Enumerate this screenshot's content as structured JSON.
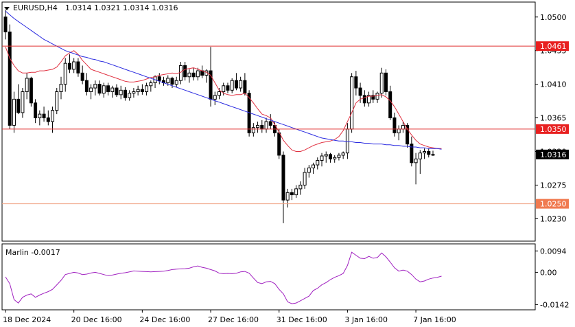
{
  "header": {
    "symbol_text": "EURUSD,H4",
    "ohlc_text": "1.0314 1.0321 1.0314 1.0316"
  },
  "colors": {
    "candle": "#000000",
    "level_line": "#e03030",
    "price_tag": "#e82020",
    "current_tag": "#000000",
    "fast_ma": "#e03040",
    "slow_ma": "#2a2ae0",
    "oscillator": "#a020c0",
    "axis": "#000000",
    "grid": "#e6e6e6"
  },
  "chart_data": [
    {
      "type": "candlestick",
      "title": "EURUSD,H4",
      "ylim": [
        1.02,
        1.052
      ],
      "y_ticks": [
        {
          "value": 1.05,
          "label": "1.0500"
        },
        {
          "value": 1.0455,
          "label": "1.0455"
        },
        {
          "value": 1.041,
          "label": "1.0410"
        },
        {
          "value": 1.0365,
          "label": "1.0365"
        },
        {
          "value": 1.032,
          "label": "1.0320"
        },
        {
          "value": 1.0275,
          "label": "1.0275"
        },
        {
          "value": 1.023,
          "label": "1.0230"
        }
      ],
      "x_ticks": [
        {
          "bar": 0,
          "label": "18 Dec 2024"
        },
        {
          "bar": 16,
          "label": "20 Dec 16:00"
        },
        {
          "bar": 32,
          "label": "24 Dec 16:00"
        },
        {
          "bar": 48,
          "label": "27 Dec 16:00"
        },
        {
          "bar": 64,
          "label": "31 Dec 16:00"
        },
        {
          "bar": 80,
          "label": "3 Jan 16:00"
        },
        {
          "bar": 96,
          "label": "7 Jan 16:00"
        }
      ],
      "levels": [
        {
          "value": 1.0461,
          "label": "1.0461"
        },
        {
          "value": 1.035,
          "label": "1.0350"
        },
        {
          "value": 1.025,
          "label": "1.0250"
        }
      ],
      "current_price": {
        "value": 1.0316,
        "label": "1.0316"
      },
      "candles": [
        [
          1.05,
          1.051,
          1.047,
          1.048
        ],
        [
          1.048,
          1.049,
          1.035,
          1.0355
        ],
        [
          1.0355,
          1.04,
          1.0345,
          1.039
        ],
        [
          1.039,
          1.041,
          1.037,
          1.0372
        ],
        [
          1.0372,
          1.0405,
          1.0365,
          1.04
        ],
        [
          1.04,
          1.0425,
          1.039,
          1.0418
        ],
        [
          1.0418,
          1.042,
          1.038,
          1.0385
        ],
        [
          1.0385,
          1.039,
          1.0358,
          1.0365
        ],
        [
          1.0365,
          1.0375,
          1.0355,
          1.037
        ],
        [
          1.037,
          1.038,
          1.036,
          1.0365
        ],
        [
          1.0365,
          1.0375,
          1.0355,
          1.036
        ],
        [
          1.036,
          1.038,
          1.0345,
          1.0375
        ],
        [
          1.0375,
          1.0405,
          1.037,
          1.04
        ],
        [
          1.04,
          1.042,
          1.039,
          1.041
        ],
        [
          1.041,
          1.0445,
          1.04,
          1.0438
        ],
        [
          1.0438,
          1.045,
          1.0425,
          1.043
        ],
        [
          1.043,
          1.0445,
          1.0425,
          1.044
        ],
        [
          1.044,
          1.0445,
          1.042,
          1.0425
        ],
        [
          1.0425,
          1.0435,
          1.041,
          1.0415
        ],
        [
          1.0415,
          1.0425,
          1.0395,
          1.04
        ],
        [
          1.04,
          1.041,
          1.039,
          1.0405
        ],
        [
          1.0405,
          1.0415,
          1.0395,
          1.041
        ],
        [
          1.041,
          1.0415,
          1.0395,
          1.0398
        ],
        [
          1.0398,
          1.0412,
          1.0392,
          1.0408
        ],
        [
          1.0408,
          1.0412,
          1.0395,
          1.04
        ],
        [
          1.04,
          1.0408,
          1.0392,
          1.0405
        ],
        [
          1.0405,
          1.041,
          1.0393,
          1.0396
        ],
        [
          1.0396,
          1.0408,
          1.039,
          1.0402
        ],
        [
          1.0402,
          1.0406,
          1.0388,
          1.0392
        ],
        [
          1.0392,
          1.0402,
          1.0388,
          1.0398
        ],
        [
          1.0398,
          1.0405,
          1.0392,
          1.04
        ],
        [
          1.04,
          1.0408,
          1.0395,
          1.0403
        ],
        [
          1.0403,
          1.041,
          1.0396,
          1.04
        ],
        [
          1.04,
          1.0412,
          1.0395,
          1.0408
        ],
        [
          1.0408,
          1.0415,
          1.04,
          1.0412
        ],
        [
          1.0412,
          1.0422,
          1.0405,
          1.042
        ],
        [
          1.042,
          1.0425,
          1.041,
          1.0415
        ],
        [
          1.0415,
          1.042,
          1.0408,
          1.0412
        ],
        [
          1.0412,
          1.0422,
          1.0408,
          1.0418
        ],
        [
          1.0418,
          1.042,
          1.0405,
          1.041
        ],
        [
          1.041,
          1.042,
          1.0406,
          1.0415
        ],
        [
          1.0415,
          1.044,
          1.041,
          1.0435
        ],
        [
          1.0435,
          1.044,
          1.0415,
          1.042
        ],
        [
          1.042,
          1.043,
          1.0412,
          1.0425
        ],
        [
          1.0425,
          1.0432,
          1.0415,
          1.042
        ],
        [
          1.042,
          1.0432,
          1.0415,
          1.0428
        ],
        [
          1.0428,
          1.0435,
          1.0418,
          1.0422
        ],
        [
          1.0422,
          1.043,
          1.0412,
          1.0428
        ],
        [
          1.0428,
          1.046,
          1.038,
          1.039
        ],
        [
          1.039,
          1.04,
          1.0382,
          1.0395
        ],
        [
          1.0395,
          1.0405,
          1.039,
          1.04
        ],
        [
          1.04,
          1.0412,
          1.0395,
          1.0408
        ],
        [
          1.0408,
          1.0412,
          1.0398,
          1.0402
        ],
        [
          1.0402,
          1.0418,
          1.0398,
          1.0415
        ],
        [
          1.0415,
          1.0425,
          1.0402,
          1.0405
        ],
        [
          1.0405,
          1.042,
          1.04,
          1.0415
        ],
        [
          1.0415,
          1.0425,
          1.0395,
          1.0398
        ],
        [
          1.0398,
          1.0402,
          1.034,
          1.0345
        ],
        [
          1.0345,
          1.0358,
          1.034,
          1.0352
        ],
        [
          1.0352,
          1.036,
          1.0345,
          1.0355
        ],
        [
          1.0355,
          1.0362,
          1.0345,
          1.035
        ],
        [
          1.035,
          1.0365,
          1.0345,
          1.036
        ],
        [
          1.036,
          1.037,
          1.035,
          1.0355
        ],
        [
          1.0355,
          1.036,
          1.034,
          1.0345
        ],
        [
          1.0345,
          1.035,
          1.031,
          1.0315
        ],
        [
          1.0315,
          1.032,
          1.0224,
          1.0255
        ],
        [
          1.0255,
          1.027,
          1.0245,
          1.0265
        ],
        [
          1.0265,
          1.027,
          1.0255,
          1.0262
        ],
        [
          1.0262,
          1.0275,
          1.0258,
          1.027
        ],
        [
          1.027,
          1.028,
          1.0262,
          1.0275
        ],
        [
          1.0275,
          1.0298,
          1.027,
          1.0292
        ],
        [
          1.0292,
          1.0302,
          1.0285,
          1.0298
        ],
        [
          1.0298,
          1.0305,
          1.029,
          1.0302
        ],
        [
          1.0302,
          1.0312,
          1.0296,
          1.0308
        ],
        [
          1.0308,
          1.0318,
          1.03,
          1.0314
        ],
        [
          1.0314,
          1.032,
          1.0305,
          1.0316
        ],
        [
          1.0316,
          1.0318,
          1.0305,
          1.031
        ],
        [
          1.031,
          1.0315,
          1.0305,
          1.0312
        ],
        [
          1.0312,
          1.0318,
          1.0308,
          1.0315
        ],
        [
          1.0315,
          1.032,
          1.031,
          1.0318
        ],
        [
          1.0318,
          1.0358,
          1.031,
          1.035
        ],
        [
          1.035,
          1.0425,
          1.0345,
          1.042
        ],
        [
          1.042,
          1.0428,
          1.0395,
          1.0405
        ],
        [
          1.0405,
          1.0412,
          1.0385,
          1.0395
        ],
        [
          1.0395,
          1.0402,
          1.038,
          1.0385
        ],
        [
          1.0385,
          1.04,
          1.038,
          1.0395
        ],
        [
          1.0395,
          1.0402,
          1.0385,
          1.039
        ],
        [
          1.039,
          1.04,
          1.0385,
          1.0398
        ],
        [
          1.0398,
          1.0432,
          1.0392,
          1.0425
        ],
        [
          1.0425,
          1.043,
          1.0395,
          1.04
        ],
        [
          1.04,
          1.0408,
          1.0362,
          1.0365
        ],
        [
          1.0365,
          1.0372,
          1.034,
          1.0345
        ],
        [
          1.0345,
          1.0355,
          1.0335,
          1.035
        ],
        [
          1.035,
          1.036,
          1.0345,
          1.0355
        ],
        [
          1.0355,
          1.0358,
          1.0325,
          1.033
        ],
        [
          1.033,
          1.034,
          1.03,
          1.0305
        ],
        [
          1.0305,
          1.0318,
          1.0276,
          1.031
        ],
        [
          1.031,
          1.0322,
          1.029,
          1.0318
        ],
        [
          1.0318,
          1.0324,
          1.031,
          1.032
        ],
        [
          1.032,
          1.0324,
          1.0312,
          1.0316
        ],
        [
          1.0316,
          1.0321,
          1.0314,
          1.0316
        ]
      ],
      "series": [
        {
          "kind": "moving_average",
          "values": [
            1.046,
            1.0445,
            1.0435,
            1.0428,
            1.0425,
            1.0425,
            1.0426,
            1.0426,
            1.0428,
            1.0428,
            1.0429,
            1.043,
            1.0433,
            1.044,
            1.0448,
            1.0452,
            1.0455,
            1.045,
            1.0442,
            1.0436,
            1.043,
            1.0428,
            1.0426,
            1.0424,
            1.0422,
            1.042,
            1.0418,
            1.0416,
            1.0414,
            1.0413,
            1.0413,
            1.0414,
            1.0415,
            1.0417,
            1.0419,
            1.042,
            1.0422,
            1.0423,
            1.0424,
            1.0425,
            1.0424,
            1.0426,
            1.043,
            1.0431,
            1.0432,
            1.043,
            1.0428,
            1.0426,
            1.0422,
            1.0412,
            1.0402,
            1.0398,
            1.0396,
            1.0395,
            1.0396,
            1.0396,
            1.0398,
            1.0392,
            1.0385,
            1.0377,
            1.037,
            1.0368,
            1.0365,
            1.0356,
            1.0346,
            1.0335,
            1.0328,
            1.0322,
            1.032,
            1.032,
            1.0322,
            1.0325,
            1.0328,
            1.033,
            1.0332,
            1.0333,
            1.0334,
            1.0336,
            1.034,
            1.0348,
            1.036,
            1.0372,
            1.0385,
            1.039,
            1.0392,
            1.0394,
            1.0394,
            1.0395,
            1.0396,
            1.0393,
            1.0388,
            1.038,
            1.037,
            1.036,
            1.035,
            1.0342,
            1.0335,
            1.033,
            1.0328,
            1.0326,
            1.0325,
            1.0324,
            1.0324
          ]
        },
        {
          "kind": "moving_average",
          "values": [
            1.0508,
            1.0503,
            1.0498,
            1.0494,
            1.049,
            1.0486,
            1.0482,
            1.0478,
            1.0474,
            1.047,
            1.0467,
            1.0464,
            1.0461,
            1.0458,
            1.0455,
            1.0453,
            1.0451,
            1.0449,
            1.0447,
            1.0446,
            1.0444,
            1.0443,
            1.0441,
            1.044,
            1.0438,
            1.0436,
            1.0434,
            1.0432,
            1.043,
            1.0428,
            1.0426,
            1.0424,
            1.0422,
            1.042,
            1.0418,
            1.0416,
            1.0414,
            1.0412,
            1.041,
            1.0408,
            1.0406,
            1.0404,
            1.0402,
            1.04,
            1.0398,
            1.0396,
            1.0394,
            1.0392,
            1.039,
            1.0388,
            1.0386,
            1.0384,
            1.0382,
            1.038,
            1.0378,
            1.0376,
            1.0374,
            1.0372,
            1.037,
            1.0368,
            1.0366,
            1.0364,
            1.0362,
            1.036,
            1.0358,
            1.0356,
            1.0354,
            1.0352,
            1.035,
            1.0348,
            1.0346,
            1.0344,
            1.0342,
            1.034,
            1.0338,
            1.0337,
            1.0336,
            1.0335,
            1.0334,
            1.0334,
            1.0333,
            1.0333,
            1.0332,
            1.0332,
            1.0331,
            1.0331,
            1.033,
            1.033,
            1.033,
            1.0329,
            1.0329,
            1.0328,
            1.0328,
            1.0327,
            1.0327,
            1.0326,
            1.0326,
            1.0325,
            1.0325,
            1.0324,
            1.0324,
            1.0324,
            1.0323
          ]
        }
      ]
    },
    {
      "type": "line",
      "title": "Marlin -0.0017",
      "ylim": [
        -0.0165,
        0.0125
      ],
      "y_ticks": [
        {
          "value": 0.0094,
          "label": "0.0094"
        },
        {
          "value": 0.0,
          "label": "0.00"
        },
        {
          "value": -0.0142,
          "label": "-0.0142"
        }
      ],
      "series": [
        {
          "name": "Marlin",
          "values": [
            -0.002,
            -0.005,
            -0.012,
            -0.0135,
            -0.011,
            -0.01,
            -0.0095,
            -0.011,
            -0.01,
            -0.0092,
            -0.0085,
            -0.0075,
            -0.0055,
            -0.0035,
            -0.001,
            -0.0005,
            0.0,
            -0.0003,
            -0.001,
            -0.0008,
            -0.0003,
            0.0,
            -0.0005,
            -0.001,
            -0.0015,
            -0.0012,
            -0.0008,
            -0.0004,
            -0.0002,
            0.0002,
            0.0006,
            0.0005,
            0.0004,
            0.0003,
            0.0002,
            0.0003,
            0.0004,
            0.0005,
            0.0008,
            0.0012,
            0.0014,
            0.0015,
            0.0016,
            0.0018,
            0.0024,
            0.0028,
            0.0022,
            0.0018,
            0.0012,
            0.0006,
            -0.0004,
            -0.0006,
            -0.0005,
            -0.0006,
            -0.0004,
            0.0002,
            0.0004,
            -0.0004,
            -0.0025,
            -0.0045,
            -0.005,
            -0.0042,
            -0.004,
            -0.005,
            -0.0075,
            -0.0095,
            -0.013,
            -0.0138,
            -0.0135,
            -0.0125,
            -0.0115,
            -0.0105,
            -0.008,
            -0.007,
            -0.0055,
            -0.0045,
            -0.0032,
            -0.0022,
            -0.0015,
            -0.0005,
            0.003,
            0.0088,
            0.0075,
            0.0062,
            0.006,
            0.007,
            0.0062,
            0.0065,
            0.0085,
            0.0068,
            0.0045,
            0.002,
            0.0005,
            0.001,
            0.0005,
            -0.001,
            -0.003,
            -0.0042,
            -0.0038,
            -0.003,
            -0.0025,
            -0.0022,
            -0.0017
          ]
        }
      ]
    }
  ]
}
